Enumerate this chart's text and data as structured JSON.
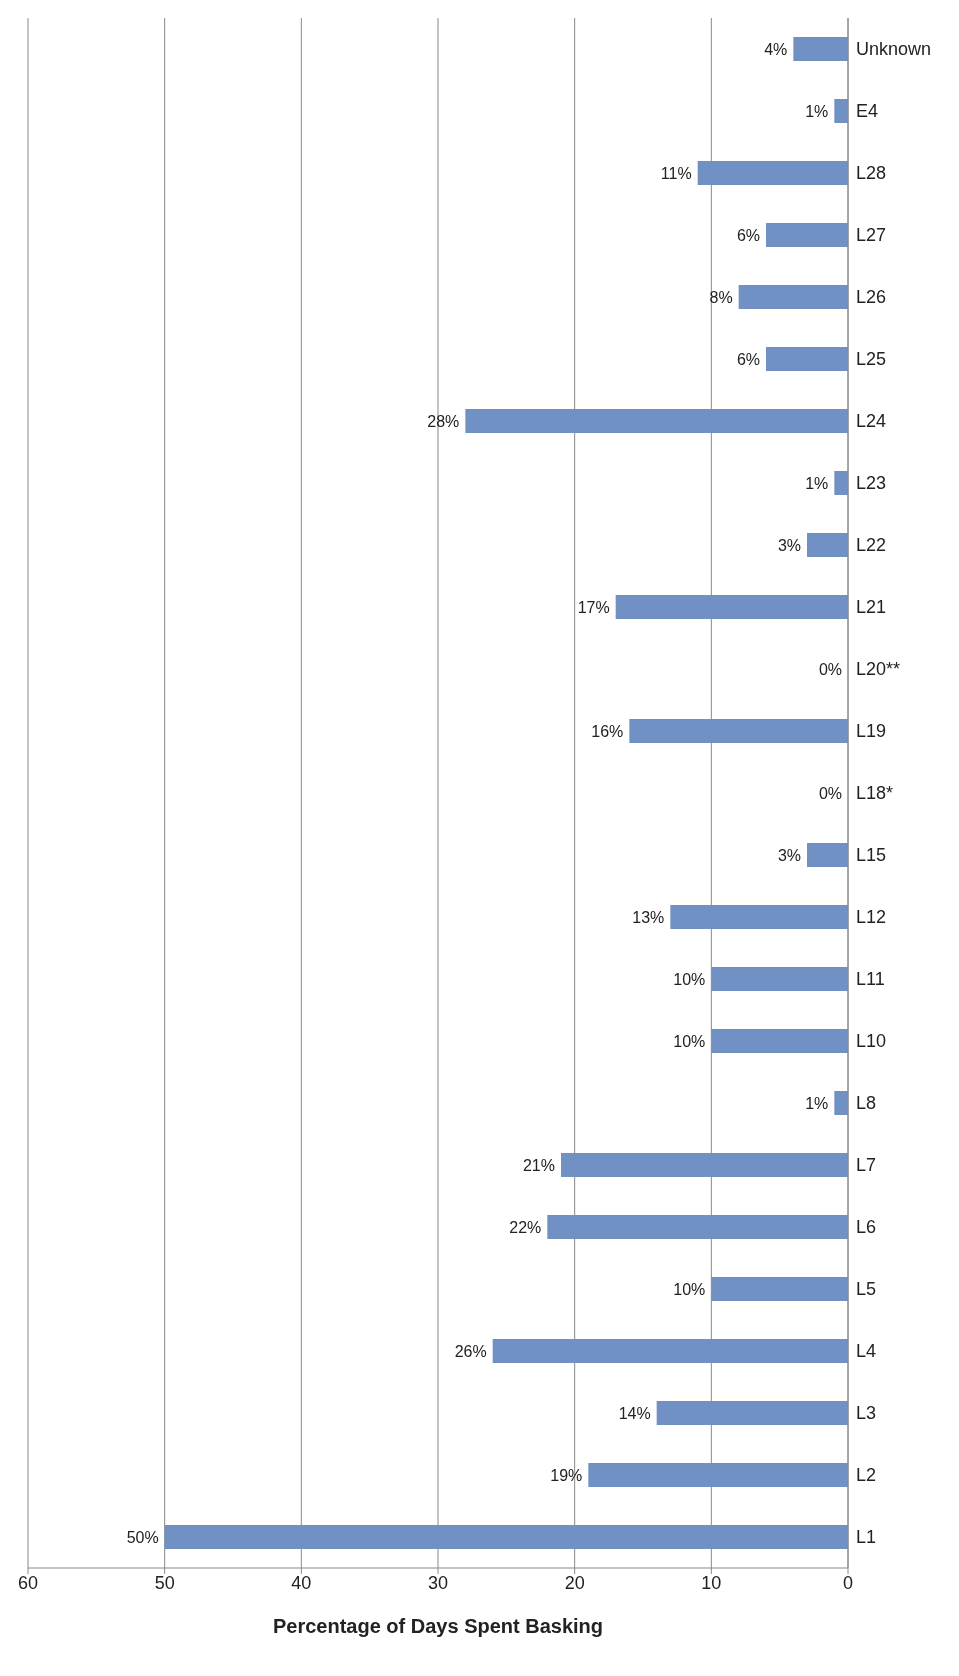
{
  "chart_data": {
    "type": "bar",
    "orientation": "horizontal",
    "xlabel": "Percentage of Days Spent Basking",
    "categories": [
      "Unknown",
      "E4",
      "L28",
      "L27",
      "L26",
      "L25",
      "L24",
      "L23",
      "L22",
      "L21",
      "L20**",
      "L19",
      "L18*",
      "L15",
      "L12",
      "L11",
      "L10",
      "L8",
      "L7",
      "L6",
      "L5",
      "L4",
      "L3",
      "L2",
      "L1"
    ],
    "values": [
      4,
      1,
      11,
      6,
      8,
      6,
      28,
      1,
      3,
      17,
      0,
      16,
      0,
      3,
      13,
      10,
      10,
      1,
      21,
      22,
      10,
      26,
      14,
      19,
      50
    ],
    "value_labels": [
      "4%",
      "1%",
      "11%",
      "6%",
      "8%",
      "6%",
      "28%",
      "1%",
      "3%",
      "17%",
      "0%",
      "16%",
      "0%",
      "3%",
      "13%",
      "10%",
      "10%",
      "1%",
      "21%",
      "22%",
      "10%",
      "26%",
      "14%",
      "19%",
      "50%"
    ],
    "color": "#7191c4",
    "xlim": [
      60,
      0
    ],
    "xticks": [
      60,
      50,
      40,
      30,
      20,
      10,
      0
    ],
    "grid": "x"
  }
}
